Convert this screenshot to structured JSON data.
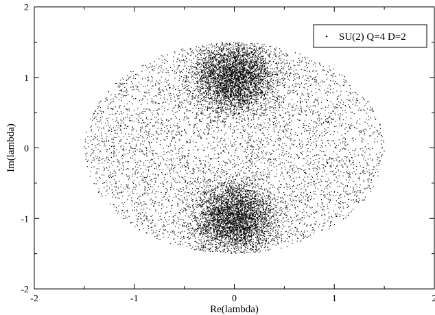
{
  "chart_data": {
    "type": "scatter",
    "xlabel": "Re(lambda)",
    "ylabel": "Im(lambda)",
    "xlim": [
      -2,
      2
    ],
    "ylim": [
      -2,
      2
    ],
    "x_ticks": [
      -2,
      -1,
      0,
      1,
      2
    ],
    "y_ticks": [
      -2,
      -1,
      0,
      1,
      2
    ],
    "x_tick_labels": [
      "-2",
      "-1",
      "0",
      "1",
      "2"
    ],
    "y_tick_labels": [
      "-2",
      "-1",
      "0",
      "1",
      "2"
    ],
    "grid": false,
    "legend": {
      "position": "top-right",
      "entries": [
        "SU(2) Q=4 D=2"
      ]
    },
    "series": [
      {
        "name": "SU(2) Q=4 D=2",
        "marker": "dot",
        "color": "#000000",
        "point_count_estimate": 12000,
        "distribution": {
          "support": "ellipse",
          "semi_axis_re": 1.5,
          "semi_axis_im": 1.5,
          "dense_clusters": [
            {
              "center": [
                0,
                1.0
              ],
              "spread": [
                0.2,
                0.25
              ]
            },
            {
              "center": [
                0,
                -1.0
              ],
              "spread": [
                0.2,
                0.25
              ]
            }
          ]
        }
      }
    ]
  }
}
